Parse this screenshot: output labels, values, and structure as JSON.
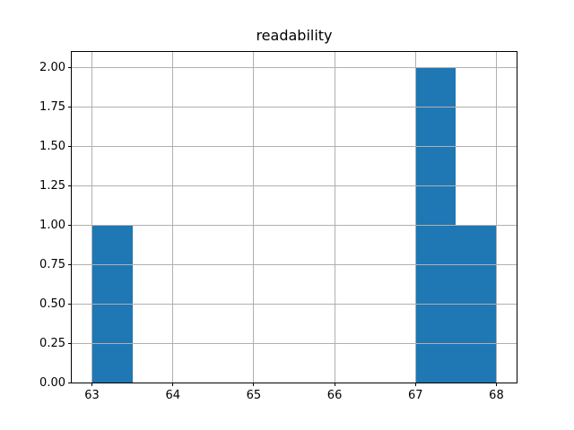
{
  "chart_data": {
    "type": "bar",
    "subtype": "histogram",
    "title": "readability",
    "xlabel": "",
    "ylabel": "",
    "bin_width": 0.5,
    "bars": [
      {
        "x0": 63.0,
        "x1": 63.5,
        "count": 1
      },
      {
        "x0": 67.0,
        "x1": 67.5,
        "count": 2
      },
      {
        "x0": 67.5,
        "x1": 68.0,
        "count": 1
      }
    ],
    "xlim": [
      62.75,
      68.25
    ],
    "ylim": [
      0,
      2.1
    ],
    "xticks": [
      {
        "value": 63,
        "label": "63"
      },
      {
        "value": 64,
        "label": "64"
      },
      {
        "value": 65,
        "label": "65"
      },
      {
        "value": 66,
        "label": "66"
      },
      {
        "value": 67,
        "label": "67"
      },
      {
        "value": 68,
        "label": "68"
      }
    ],
    "yticks": [
      {
        "value": 0.0,
        "label": "0.00"
      },
      {
        "value": 0.25,
        "label": "0.25"
      },
      {
        "value": 0.5,
        "label": "0.50"
      },
      {
        "value": 0.75,
        "label": "0.75"
      },
      {
        "value": 1.0,
        "label": "1.00"
      },
      {
        "value": 1.25,
        "label": "1.25"
      },
      {
        "value": 1.5,
        "label": "1.50"
      },
      {
        "value": 1.75,
        "label": "1.75"
      },
      {
        "value": 2.0,
        "label": "2.00"
      }
    ],
    "grid": true,
    "grid_over_bars": true,
    "legend": null,
    "colors": {
      "bar": "#1f77b4",
      "grid": "#b0b0b0",
      "spine": "#000000",
      "background": "#ffffff",
      "text": "#000000"
    }
  }
}
